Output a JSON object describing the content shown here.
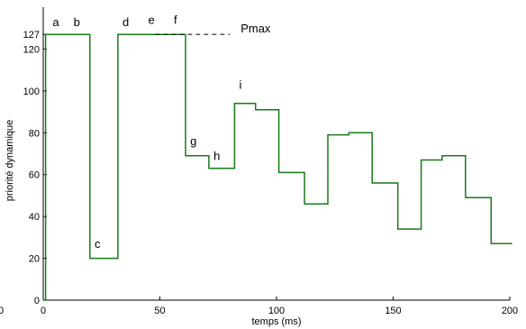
{
  "chart_data": {
    "type": "line",
    "title": "",
    "xlabel": "temps (ms)",
    "ylabel": "priorité dynamique",
    "xlim": [
      0,
      200
    ],
    "ylim": [
      0,
      140
    ],
    "grid": false,
    "line_color": "#1a7a1a",
    "x_ticks": [
      0,
      50,
      100,
      150,
      200
    ],
    "y_ticks": [
      0,
      20,
      40,
      60,
      80,
      100,
      120,
      127
    ],
    "extra_left_label": "0",
    "series": [
      {
        "step": true,
        "x": [
          0,
          1,
          1,
          20,
          20,
          32,
          32,
          61,
          61,
          71,
          71,
          82,
          82,
          91,
          91,
          101,
          101,
          112,
          112,
          122,
          122,
          131,
          131,
          141,
          141,
          152,
          152,
          162,
          162,
          171,
          171,
          181,
          181,
          192,
          192,
          201
        ],
        "y": [
          0,
          0,
          127,
          127,
          20,
          20,
          127,
          127,
          69,
          69,
          63,
          63,
          94,
          94,
          91,
          91,
          61,
          61,
          46,
          46,
          79,
          79,
          80,
          80,
          56,
          56,
          34,
          34,
          67,
          67,
          69,
          69,
          49,
          49,
          27,
          27
        ]
      }
    ],
    "reference_line": {
      "y": 127,
      "x_from": 48,
      "x_to": 80,
      "label": "Pmax"
    },
    "annotations": [
      {
        "text": "a",
        "x": 4,
        "y": 131
      },
      {
        "text": "b",
        "x": 13,
        "y": 131
      },
      {
        "text": "c",
        "x": 22,
        "y": 25
      },
      {
        "text": "d",
        "x": 34,
        "y": 131
      },
      {
        "text": "e",
        "x": 45,
        "y": 132
      },
      {
        "text": "f",
        "x": 56,
        "y": 132
      },
      {
        "text": "g",
        "x": 63,
        "y": 74
      },
      {
        "text": "h",
        "x": 73,
        "y": 67
      },
      {
        "text": "i",
        "x": 84,
        "y": 101
      }
    ]
  }
}
